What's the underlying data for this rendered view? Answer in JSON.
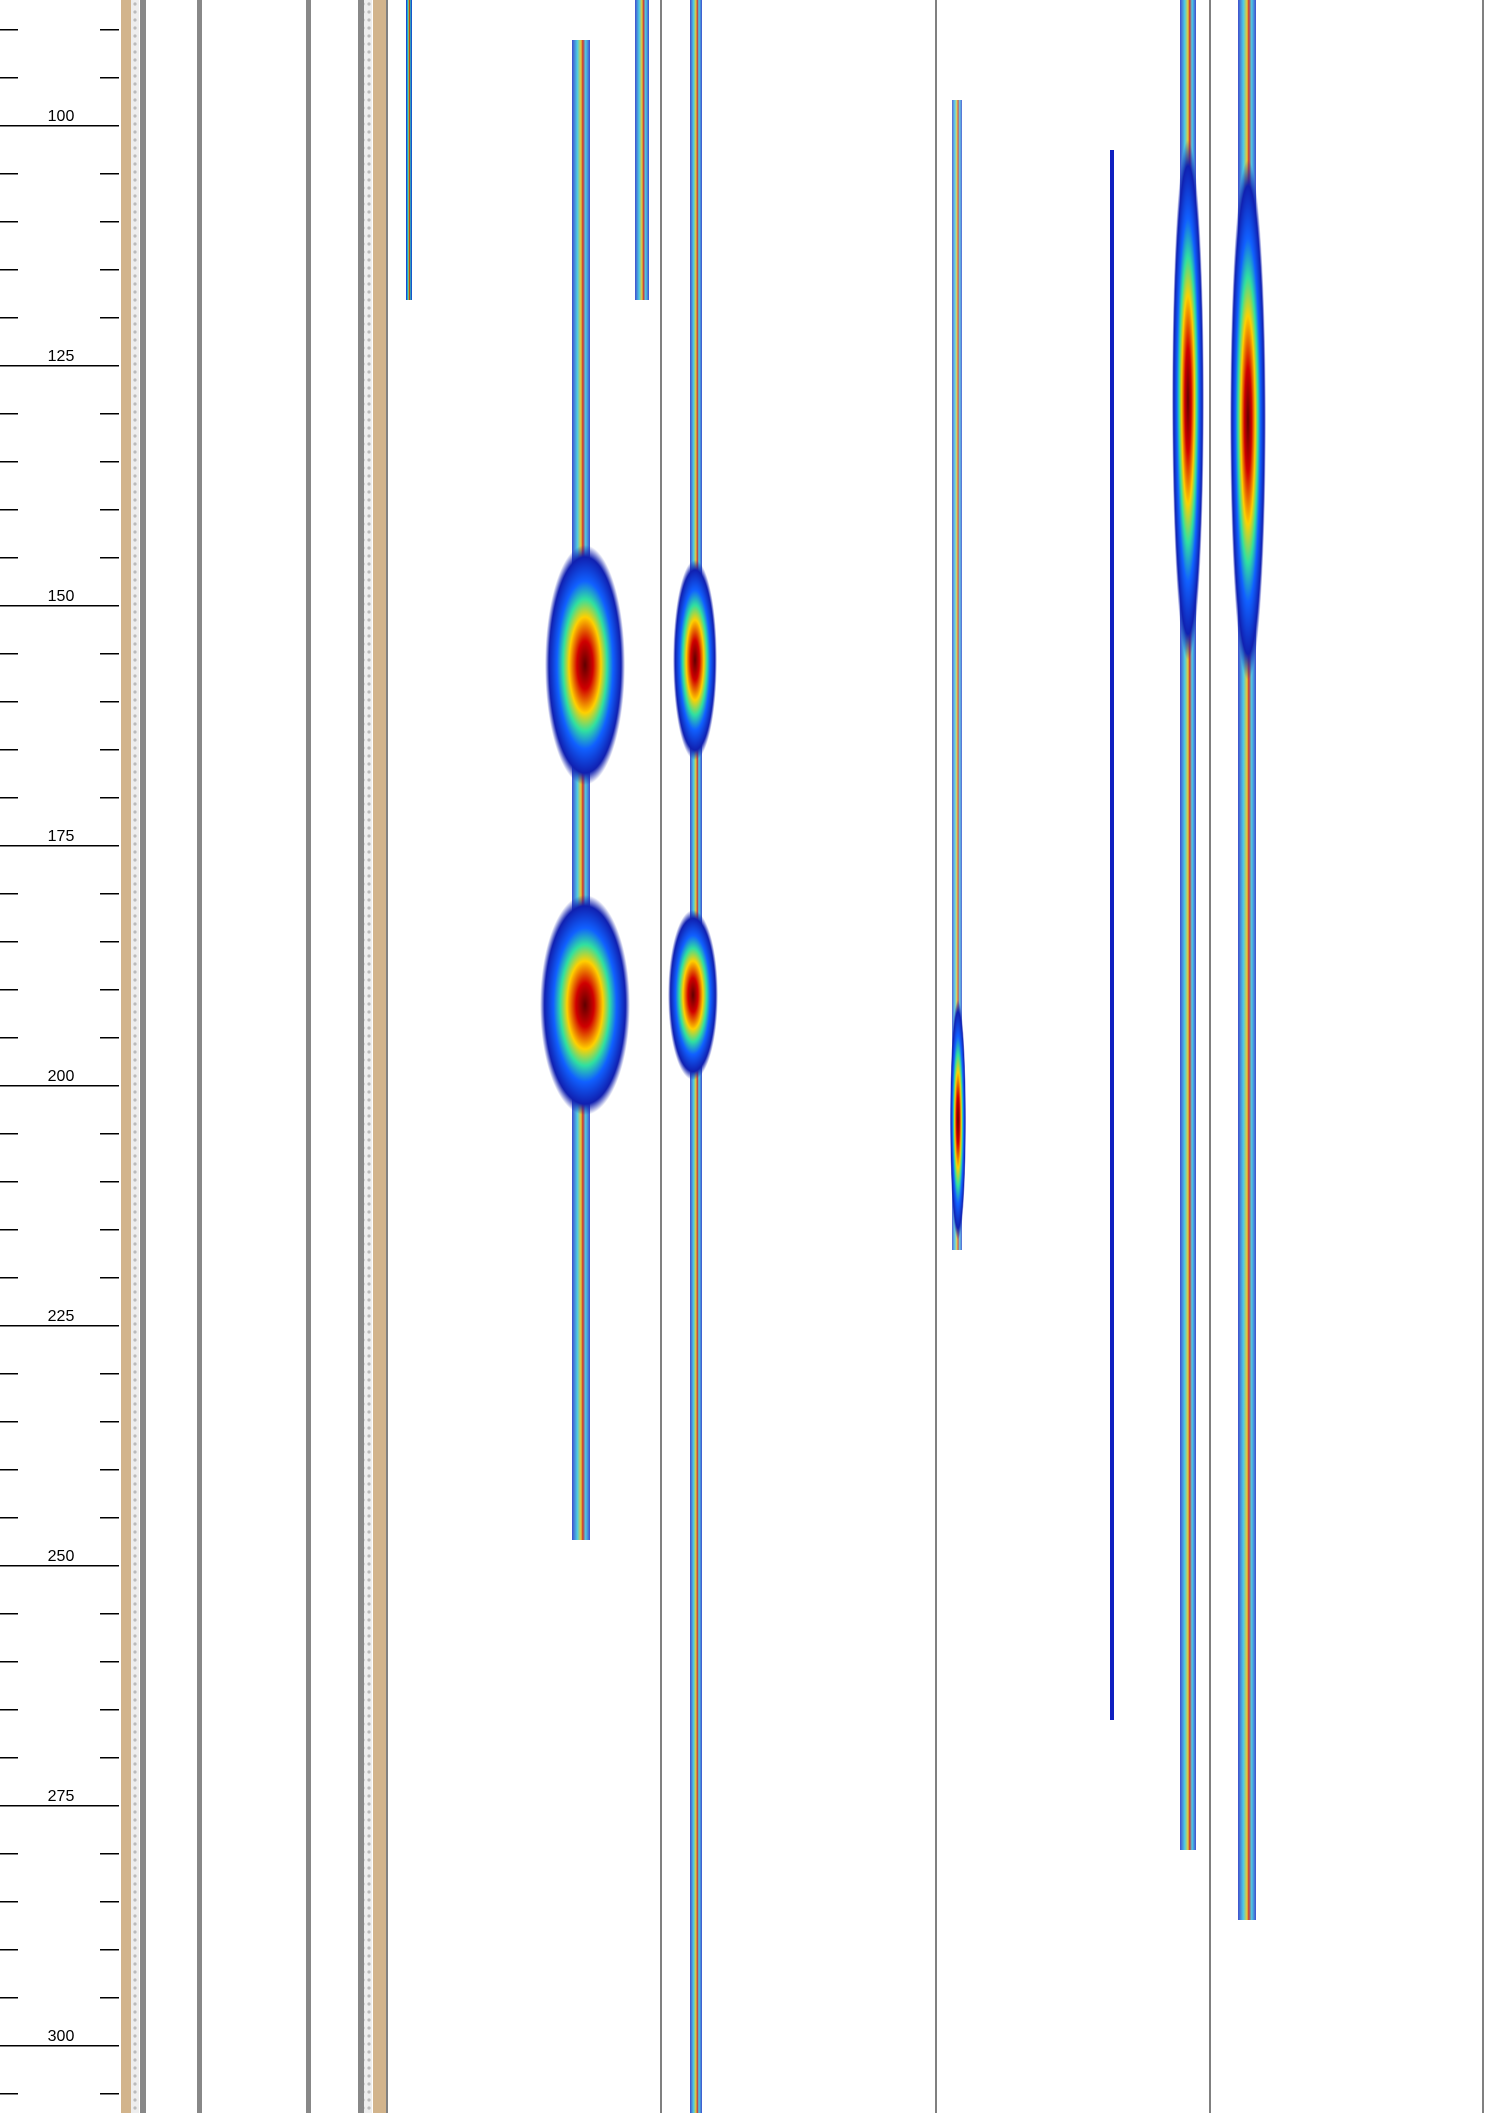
{
  "chart_data": {
    "type": "well-log",
    "ylim": [
      86.9,
      307.0
    ],
    "yticks": [
      100,
      125,
      150,
      175,
      200,
      225,
      250,
      275,
      300
    ],
    "minor_yticks": [
      90,
      95,
      105,
      110,
      115,
      120,
      130,
      135,
      140,
      145,
      155,
      160,
      165,
      170,
      180,
      185,
      190,
      195,
      205,
      210,
      215,
      220,
      230,
      235,
      240,
      245,
      255,
      260,
      265,
      270,
      280,
      285,
      290,
      295,
      305
    ],
    "inverted": true
  }
}
